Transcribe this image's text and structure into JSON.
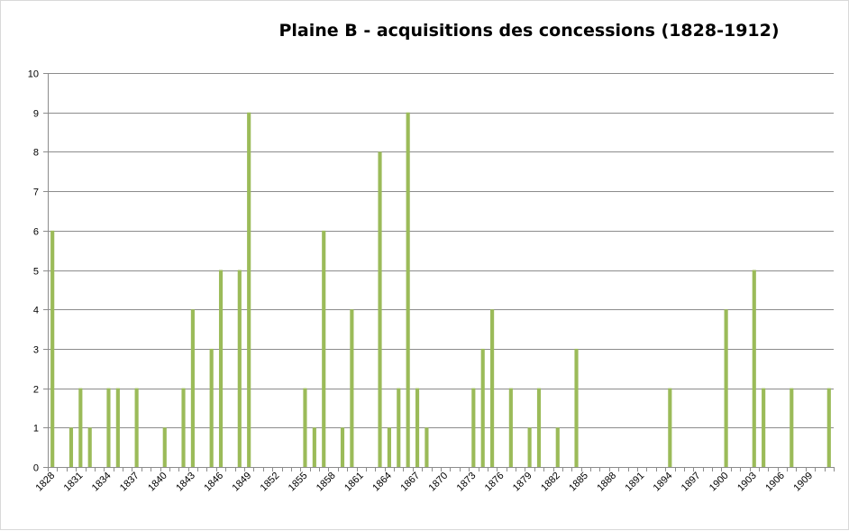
{
  "chart_data": {
    "type": "bar",
    "title": "Plaine B - acquisitions des concessions (1828-1912)",
    "xlabel": "",
    "ylabel": "",
    "ylim": [
      0,
      10
    ],
    "yticks": [
      0,
      1,
      2,
      3,
      4,
      5,
      6,
      7,
      8,
      9,
      10
    ],
    "grid": true,
    "legend": "none",
    "color": "#9bbb59",
    "categories": [
      "1828",
      "1829",
      "1830",
      "1831",
      "1832",
      "1833",
      "1834",
      "1835",
      "1836",
      "1837",
      "1838",
      "1839",
      "1840",
      "1841",
      "1842",
      "1843",
      "1844",
      "1845",
      "1846",
      "1847",
      "1848",
      "1849",
      "1850",
      "1851",
      "1852",
      "1853",
      "1854",
      "1855",
      "1856",
      "1857",
      "1858",
      "1859",
      "1860",
      "1861",
      "1862",
      "1863",
      "1864",
      "1865",
      "1866",
      "1867",
      "1868",
      "1869",
      "1870",
      "1871",
      "1872",
      "1873",
      "1874",
      "1875",
      "1876",
      "1877",
      "1878",
      "1879",
      "1880",
      "1881",
      "1882",
      "1883",
      "1884",
      "1885",
      "1886",
      "1887",
      "1888",
      "1889",
      "1890",
      "1891",
      "1892",
      "1893",
      "1894",
      "1895",
      "1897",
      "1898",
      "1899",
      "1900",
      "1901",
      "1902",
      "1903",
      "1904",
      "1905",
      "1906",
      "1907",
      "1908",
      "1909",
      "1910",
      "1911",
      "1912"
    ],
    "values": [
      6,
      0,
      1,
      2,
      1,
      0,
      2,
      2,
      0,
      2,
      0,
      0,
      1,
      0,
      2,
      4,
      0,
      3,
      5,
      0,
      5,
      9,
      0,
      0,
      0,
      0,
      0,
      2,
      1,
      6,
      0,
      1,
      4,
      0,
      0,
      8,
      1,
      2,
      9,
      2,
      1,
      0,
      0,
      0,
      0,
      2,
      3,
      4,
      0,
      2,
      0,
      1,
      2,
      0,
      1,
      0,
      3,
      0,
      0,
      0,
      0,
      0,
      0,
      0,
      0,
      0,
      2,
      0,
      0,
      0,
      0,
      0,
      4,
      0,
      0,
      5,
      2,
      0,
      0,
      2,
      0,
      0,
      0,
      2
    ],
    "xtick_labels": [
      "1828",
      "1831",
      "1834",
      "1837",
      "1840",
      "1843",
      "1846",
      "1849",
      "1852",
      "1855",
      "1858",
      "1861",
      "1864",
      "1867",
      "1870",
      "1873",
      "1876",
      "1879",
      "1882",
      "1885",
      "1888",
      "1891",
      "1894",
      "1897",
      "1900",
      "1903",
      "1906",
      "1909"
    ]
  }
}
